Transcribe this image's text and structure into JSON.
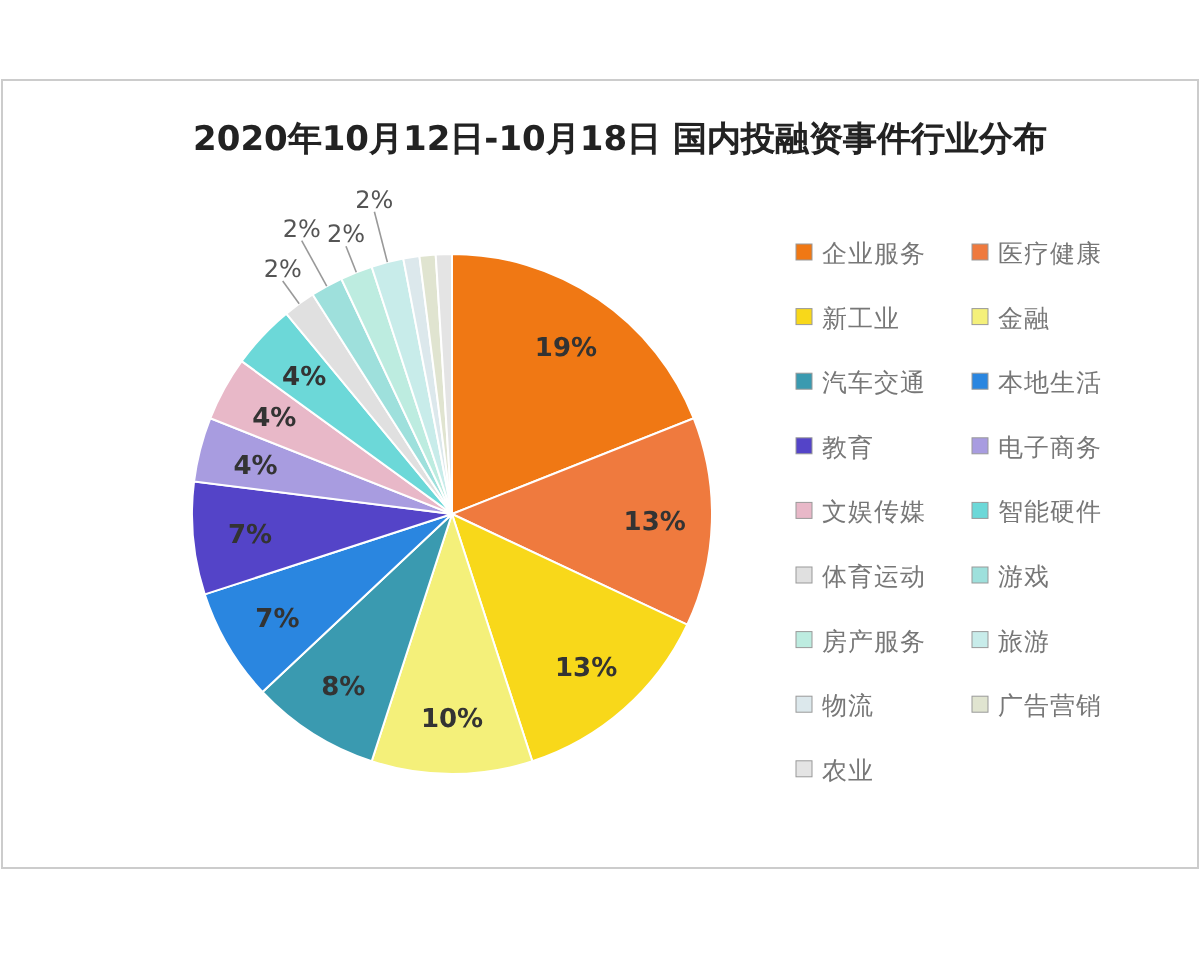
{
  "chart_data": {
    "type": "pie",
    "title": "2020年10月12日-10月18日 国内投融资事件行业分布",
    "categories": [
      "企业服务",
      "医疗健康",
      "新工业",
      "金融",
      "汽车交通",
      "本地生活",
      "教育",
      "电子商务",
      "文娱传媒",
      "智能硬件",
      "体育运动",
      "游戏",
      "房产服务",
      "旅游",
      "物流",
      "广告营销",
      "农业"
    ],
    "values": [
      19,
      13,
      13,
      10,
      8,
      7,
      7,
      4,
      4,
      4,
      2,
      2,
      2,
      2,
      1,
      1,
      1
    ],
    "value_labels": [
      "19%",
      "13%",
      "13%",
      "10%",
      "8%",
      "7%",
      "7%",
      "4%",
      "4%",
      "4%",
      "2%",
      "2%",
      "2%",
      "2%",
      null,
      null,
      null
    ],
    "colors": [
      "#f07814",
      "#ef7a3e",
      "#f8d81a",
      "#f4f07a",
      "#3a9ab0",
      "#2a86e0",
      "#5444c8",
      "#a89ce0",
      "#e8b8c8",
      "#6cd8d8",
      "#e0e0e0",
      "#9ee0dc",
      "#bdece0",
      "#c8ecea",
      "#dce8ec",
      "#e0e4d0",
      "#e4e4e4"
    ],
    "legend": "right"
  }
}
